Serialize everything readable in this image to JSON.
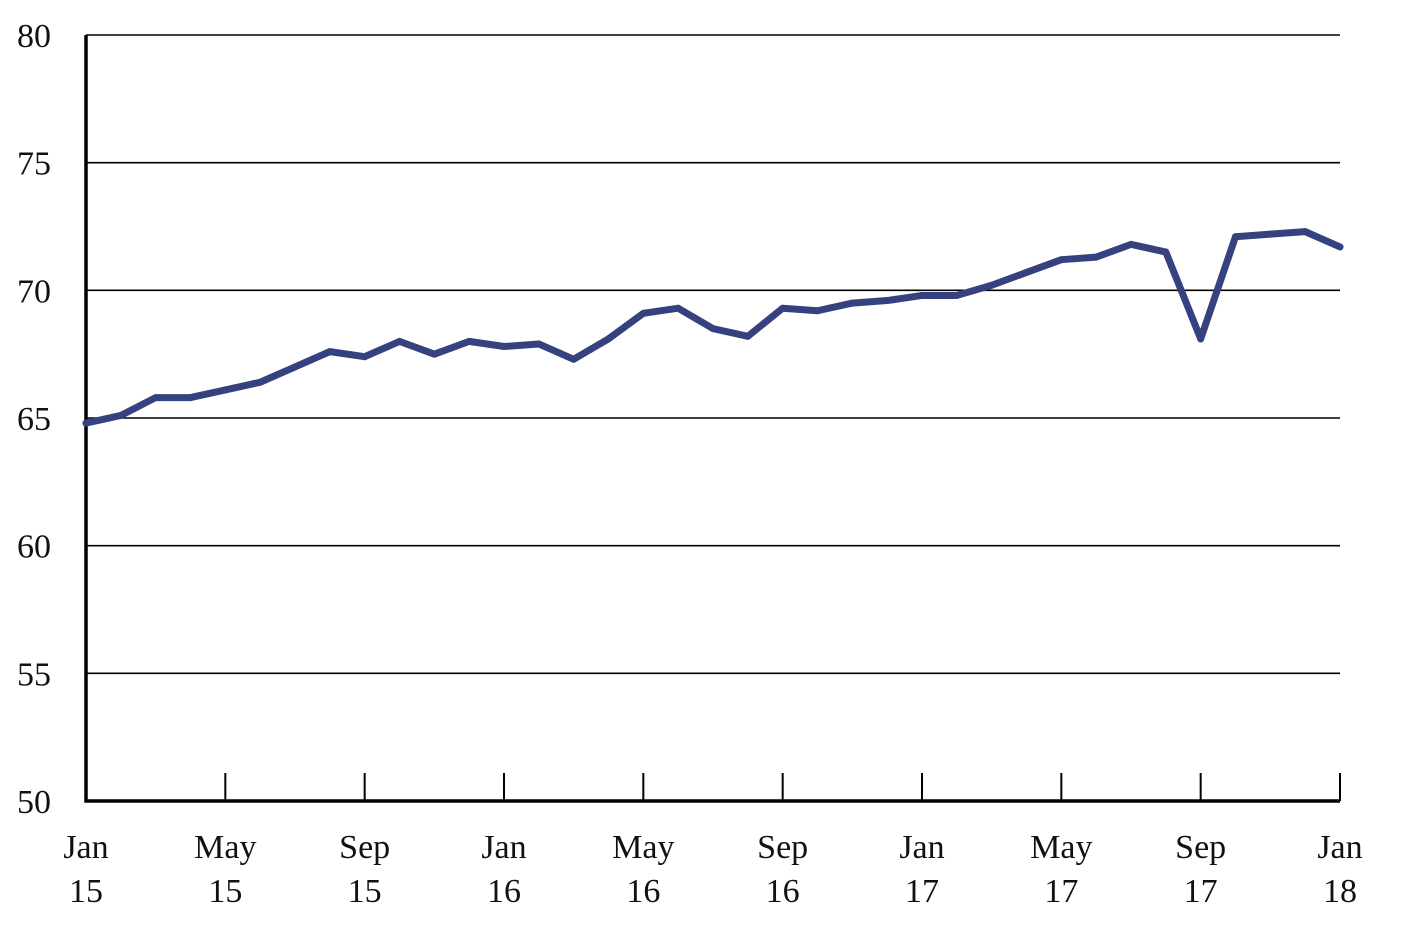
{
  "chart_data": {
    "type": "line",
    "title": "",
    "xlabel": "",
    "ylabel": "",
    "ylim": [
      50,
      80
    ],
    "y_ticks": [
      50,
      55,
      60,
      65,
      70,
      75,
      80
    ],
    "grid": "horizontal",
    "x_tick_labels": [
      {
        "month": "Jan",
        "year": "15"
      },
      {
        "month": "May",
        "year": "15"
      },
      {
        "month": "Sep",
        "year": "15"
      },
      {
        "month": "Jan",
        "year": "16"
      },
      {
        "month": "May",
        "year": "16"
      },
      {
        "month": "Sep",
        "year": "16"
      },
      {
        "month": "Jan",
        "year": "17"
      },
      {
        "month": "May",
        "year": "17"
      },
      {
        "month": "Sep",
        "year": "17"
      },
      {
        "month": "Jan",
        "year": "18"
      }
    ],
    "series": [
      {
        "color": "#36427f",
        "points": [
          {
            "x": "2015-01",
            "y": 64.8
          },
          {
            "x": "2015-02",
            "y": 65.1
          },
          {
            "x": "2015-03",
            "y": 65.8
          },
          {
            "x": "2015-04",
            "y": 65.8
          },
          {
            "x": "2015-05",
            "y": 66.1
          },
          {
            "x": "2015-06",
            "y": 66.4
          },
          {
            "x": "2015-07",
            "y": 67.0
          },
          {
            "x": "2015-08",
            "y": 67.6
          },
          {
            "x": "2015-09",
            "y": 67.4
          },
          {
            "x": "2015-10",
            "y": 68.0
          },
          {
            "x": "2015-11",
            "y": 67.5
          },
          {
            "x": "2015-12",
            "y": 68.0
          },
          {
            "x": "2016-01",
            "y": 67.8
          },
          {
            "x": "2016-02",
            "y": 67.9
          },
          {
            "x": "2016-03",
            "y": 67.3
          },
          {
            "x": "2016-04",
            "y": 68.1
          },
          {
            "x": "2016-05",
            "y": 69.1
          },
          {
            "x": "2016-06",
            "y": 69.3
          },
          {
            "x": "2016-07",
            "y": 68.5
          },
          {
            "x": "2016-08",
            "y": 68.2
          },
          {
            "x": "2016-09",
            "y": 69.3
          },
          {
            "x": "2016-10",
            "y": 69.2
          },
          {
            "x": "2016-11",
            "y": 69.5
          },
          {
            "x": "2016-12",
            "y": 69.6
          },
          {
            "x": "2017-01",
            "y": 69.8
          },
          {
            "x": "2017-02",
            "y": 69.8
          },
          {
            "x": "2017-03",
            "y": 70.2
          },
          {
            "x": "2017-04",
            "y": 70.7
          },
          {
            "x": "2017-05",
            "y": 71.2
          },
          {
            "x": "2017-06",
            "y": 71.3
          },
          {
            "x": "2017-07",
            "y": 71.8
          },
          {
            "x": "2017-08",
            "y": 71.5
          },
          {
            "x": "2017-09",
            "y": 68.1
          },
          {
            "x": "2017-10",
            "y": 72.1
          },
          {
            "x": "2017-11",
            "y": 72.2
          },
          {
            "x": "2017-12",
            "y": 72.3
          },
          {
            "x": "2018-01",
            "y": 71.7
          }
        ]
      }
    ]
  }
}
